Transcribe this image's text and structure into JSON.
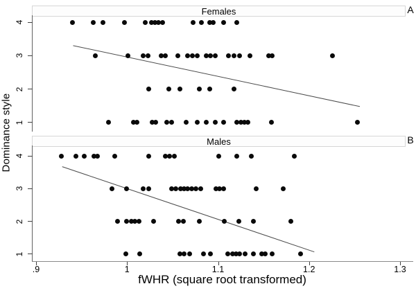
{
  "figure": {
    "ylabel": "Dominance style",
    "xlabel": "fWHR (square root transformed)",
    "y_ticks": [
      "4",
      "3",
      "2",
      "1"
    ],
    "x_ticks": [
      {
        "label": ".9",
        "value": 0.9
      },
      {
        "label": "1",
        "value": 1.0
      },
      {
        "label": "1.1",
        "value": 1.1
      },
      {
        "label": "1.2",
        "value": 1.2
      },
      {
        "label": "1.3",
        "value": 1.3
      }
    ],
    "colors": {
      "dot": "#0a0a0a",
      "trend_line": "#4a4a4a",
      "axis": "#606060",
      "header_border": "#d6d6d6",
      "header_bg": "#fdfdfd"
    }
  },
  "chart_data": [
    {
      "type": "scatter",
      "title": "Females",
      "panel_label": "A",
      "xlabel": "fWHR (square root transformed)",
      "ylabel": "Dominance style",
      "xlim": [
        0.9,
        1.3
      ],
      "ylim": [
        1,
        4
      ],
      "points": {
        "4": [
          0.939,
          0.962,
          0.973,
          0.996,
          1.019,
          1.026,
          1.03,
          1.034,
          1.038,
          1.072,
          1.081,
          1.09,
          1.094,
          1.105,
          1.12
        ],
        "3": [
          0.964,
          1.0,
          1.017,
          1.022,
          1.037,
          1.041,
          1.055,
          1.066,
          1.071,
          1.076,
          1.086,
          1.091,
          1.096,
          1.111,
          1.117,
          1.123,
          1.134,
          1.155,
          1.159,
          1.225
        ],
        "2": [
          1.023,
          1.045,
          1.057,
          1.079,
          1.09,
          1.117
        ],
        "1": [
          0.979,
          1.006,
          1.01,
          1.027,
          1.031,
          1.043,
          1.048,
          1.064,
          1.076,
          1.086,
          1.096,
          1.105,
          1.12,
          1.124,
          1.128,
          1.132,
          1.158,
          1.252
        ]
      },
      "trend_line": {
        "x1": 0.94,
        "y1": 3.3,
        "x2": 1.255,
        "y2": 1.48
      }
    },
    {
      "type": "scatter",
      "title": "Males",
      "panel_label": "B",
      "xlabel": "fWHR (square root transformed)",
      "ylabel": "Dominance style",
      "xlim": [
        0.9,
        1.3
      ],
      "ylim": [
        1,
        4
      ],
      "points": {
        "4": [
          0.927,
          0.943,
          0.952,
          0.963,
          0.967,
          0.986,
          1.023,
          1.041,
          1.046,
          1.051,
          1.1,
          1.12,
          1.136,
          1.183
        ],
        "3": [
          0.983,
          0.999,
          1.017,
          1.023,
          1.048,
          1.053,
          1.058,
          1.062,
          1.066,
          1.07,
          1.075,
          1.08,
          1.097,
          1.101,
          1.105,
          1.141,
          1.171
        ],
        "2": [
          0.989,
          0.999,
          1.004,
          1.008,
          1.012,
          1.028,
          1.056,
          1.061,
          1.079,
          1.106,
          1.122,
          1.138,
          1.179
        ],
        "1": [
          0.998,
          1.013,
          1.057,
          1.062,
          1.068,
          1.083,
          1.091,
          1.11,
          1.115,
          1.119,
          1.123,
          1.129,
          1.138,
          1.147,
          1.151,
          1.159,
          1.19
        ]
      },
      "trend_line": {
        "x1": 0.928,
        "y1": 3.67,
        "x2": 1.205,
        "y2": 1.07
      }
    }
  ]
}
